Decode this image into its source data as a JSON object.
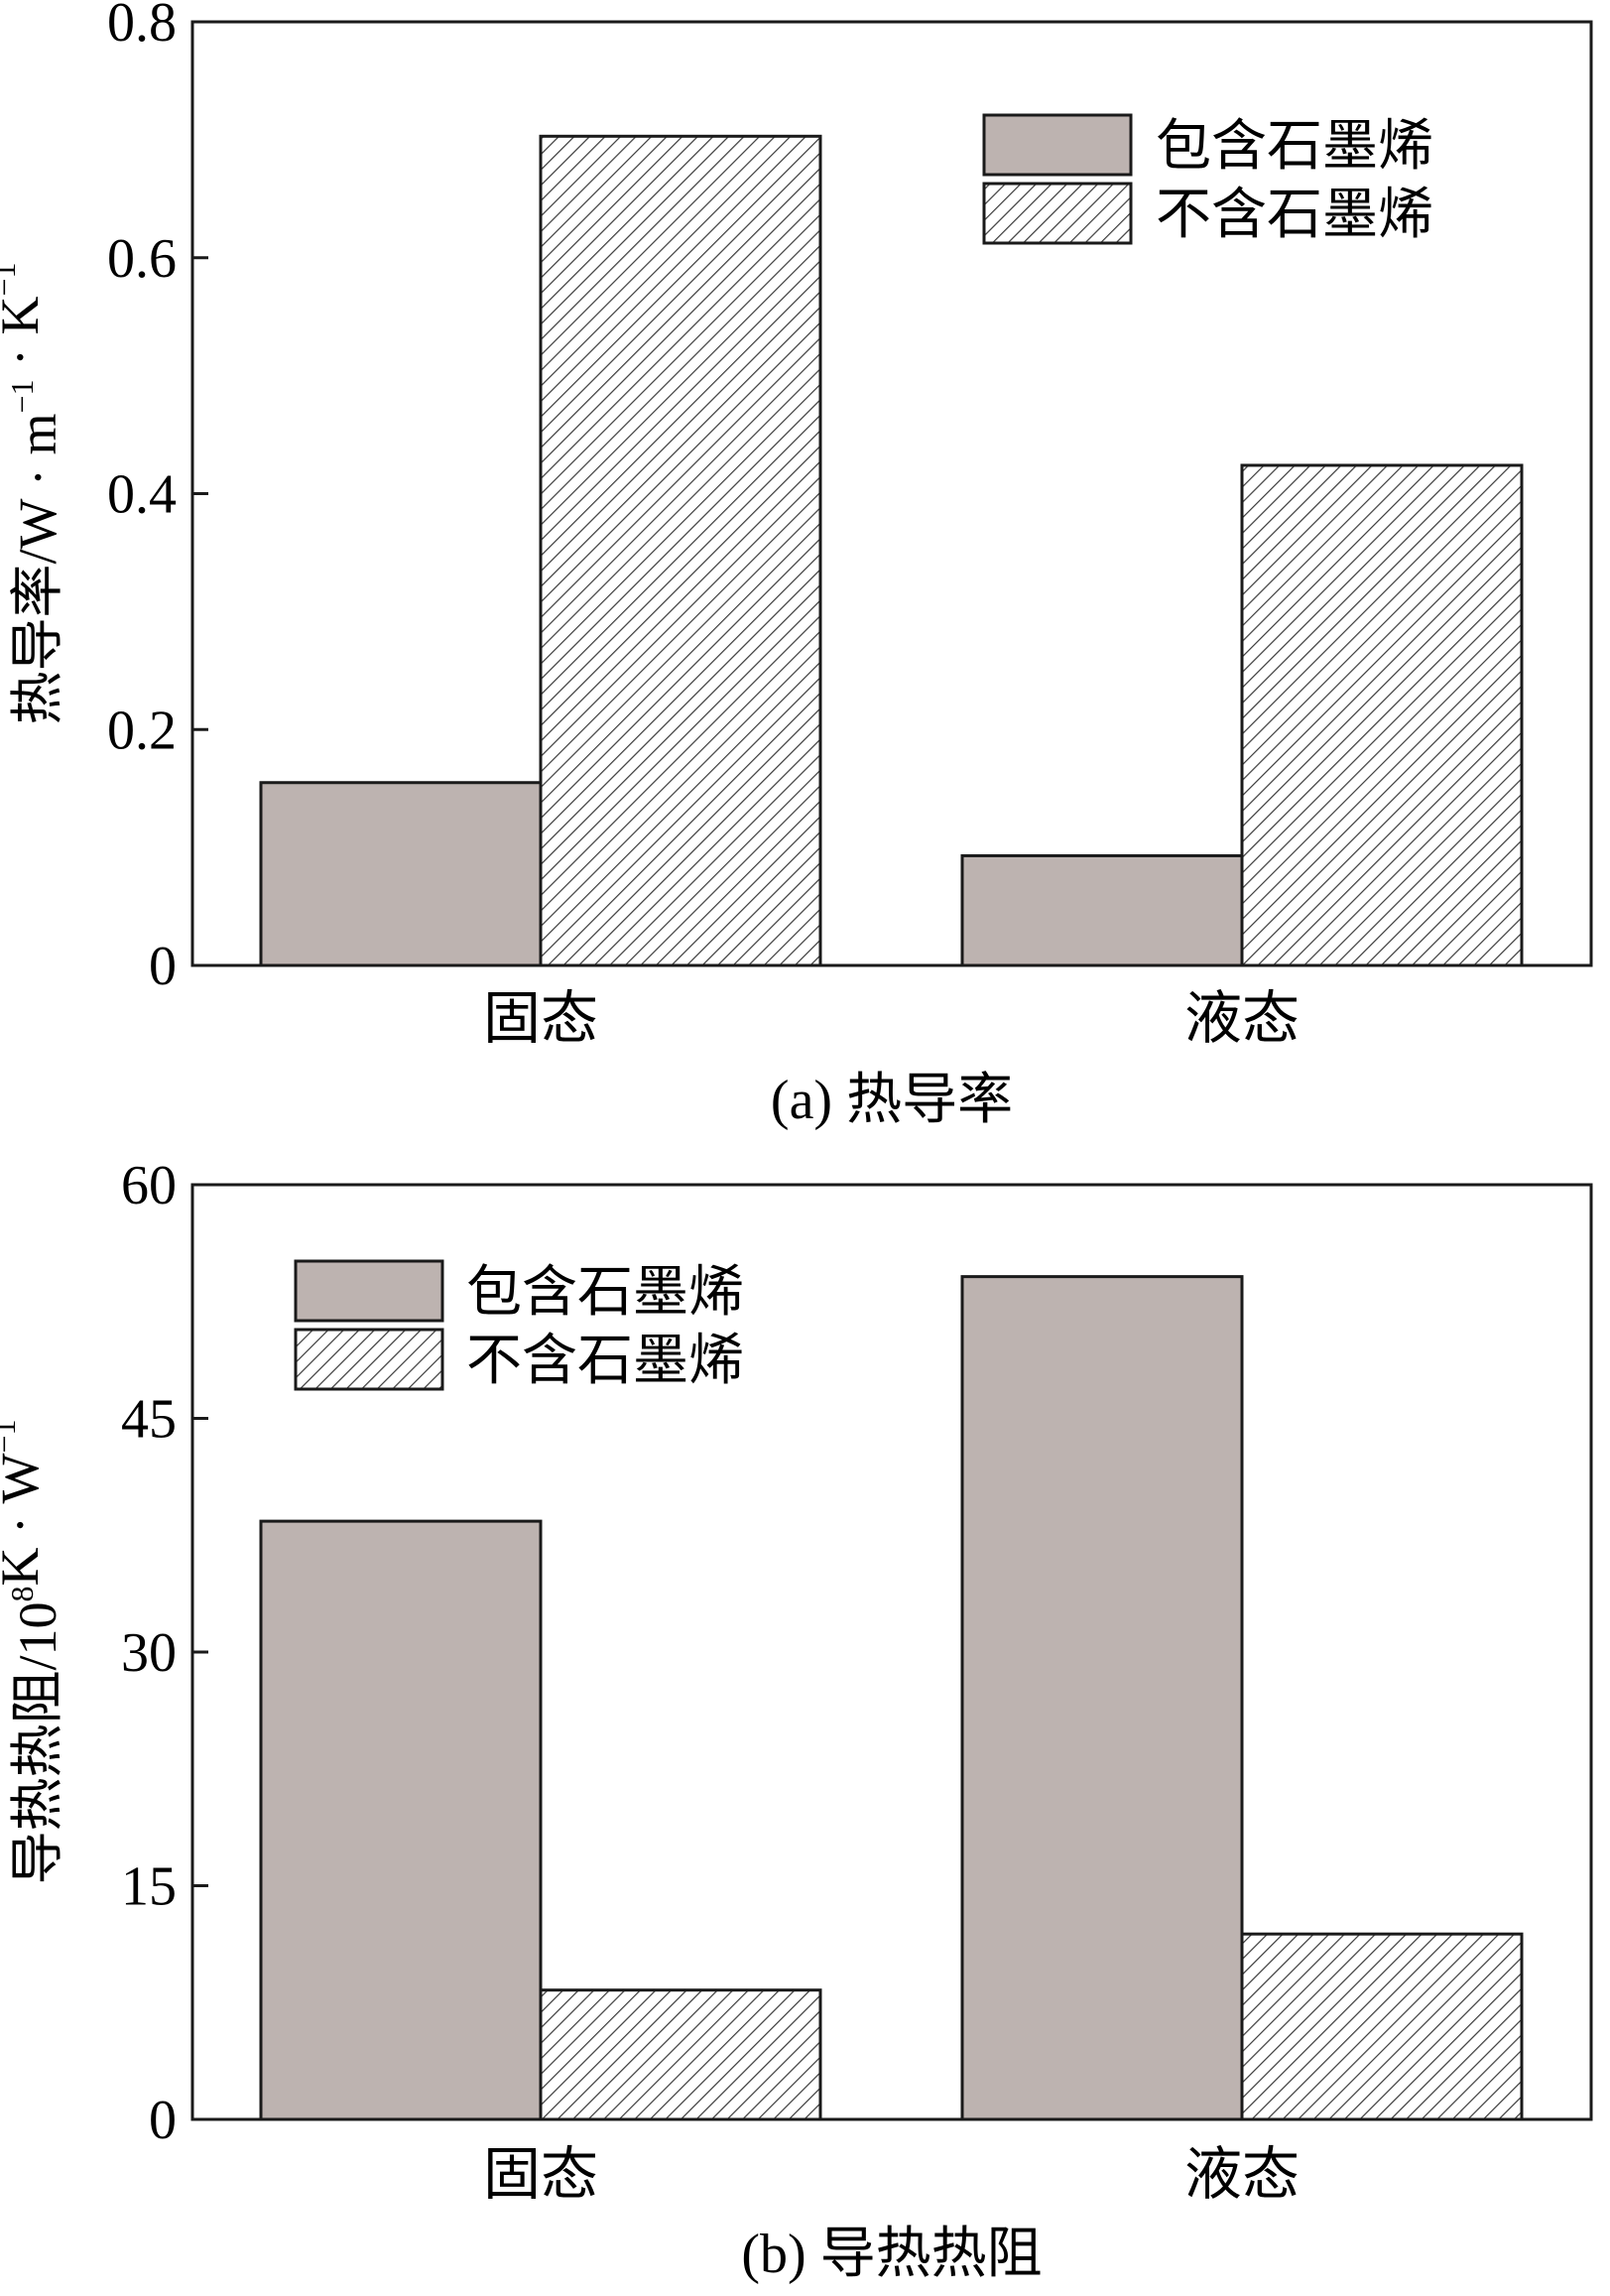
{
  "chart_data": [
    {
      "type": "bar",
      "panel": "a",
      "caption_label": "(a)",
      "caption_title": "热导率",
      "ylabel": "热导率/W · m",
      "ylabel_sup1": "−1",
      "ylabel_mid": " · K",
      "ylabel_sup2": "−1",
      "ylim": [
        0,
        0.8
      ],
      "yticks": [
        "0",
        "0.2",
        "0.4",
        "0.6",
        "0.8"
      ],
      "ytick_values": [
        0,
        0.2,
        0.4,
        0.6,
        0.8
      ],
      "categories": [
        "固态",
        "液态"
      ],
      "series": [
        {
          "name": "包含石墨烯",
          "style": "solid",
          "color": "#bdb3b0",
          "values": [
            0.155,
            0.093
          ]
        },
        {
          "name": "不含石墨烯",
          "style": "hatched",
          "color": "#ffffff",
          "values": [
            0.703,
            0.424
          ]
        }
      ],
      "legend_position": "top-right",
      "grid": false
    },
    {
      "type": "bar",
      "panel": "b",
      "caption_label": "(b)",
      "caption_title": "导热热阻",
      "ylabel": "导热热阻/10",
      "ylabel_sup1": "8",
      "ylabel_mid": "K · W",
      "ylabel_sup2": "−1",
      "ylim": [
        0,
        60
      ],
      "yticks": [
        "0",
        "15",
        "30",
        "45",
        "60"
      ],
      "ytick_values": [
        0,
        15,
        30,
        45,
        60
      ],
      "categories": [
        "固态",
        "液态"
      ],
      "series": [
        {
          "name": "包含石墨烯",
          "style": "solid",
          "color": "#bdb3b0",
          "values": [
            38.4,
            54.1
          ]
        },
        {
          "name": "不含石墨烯",
          "style": "hatched",
          "color": "#ffffff",
          "values": [
            8.3,
            11.9
          ]
        }
      ],
      "legend_position": "top-left",
      "grid": false
    }
  ]
}
